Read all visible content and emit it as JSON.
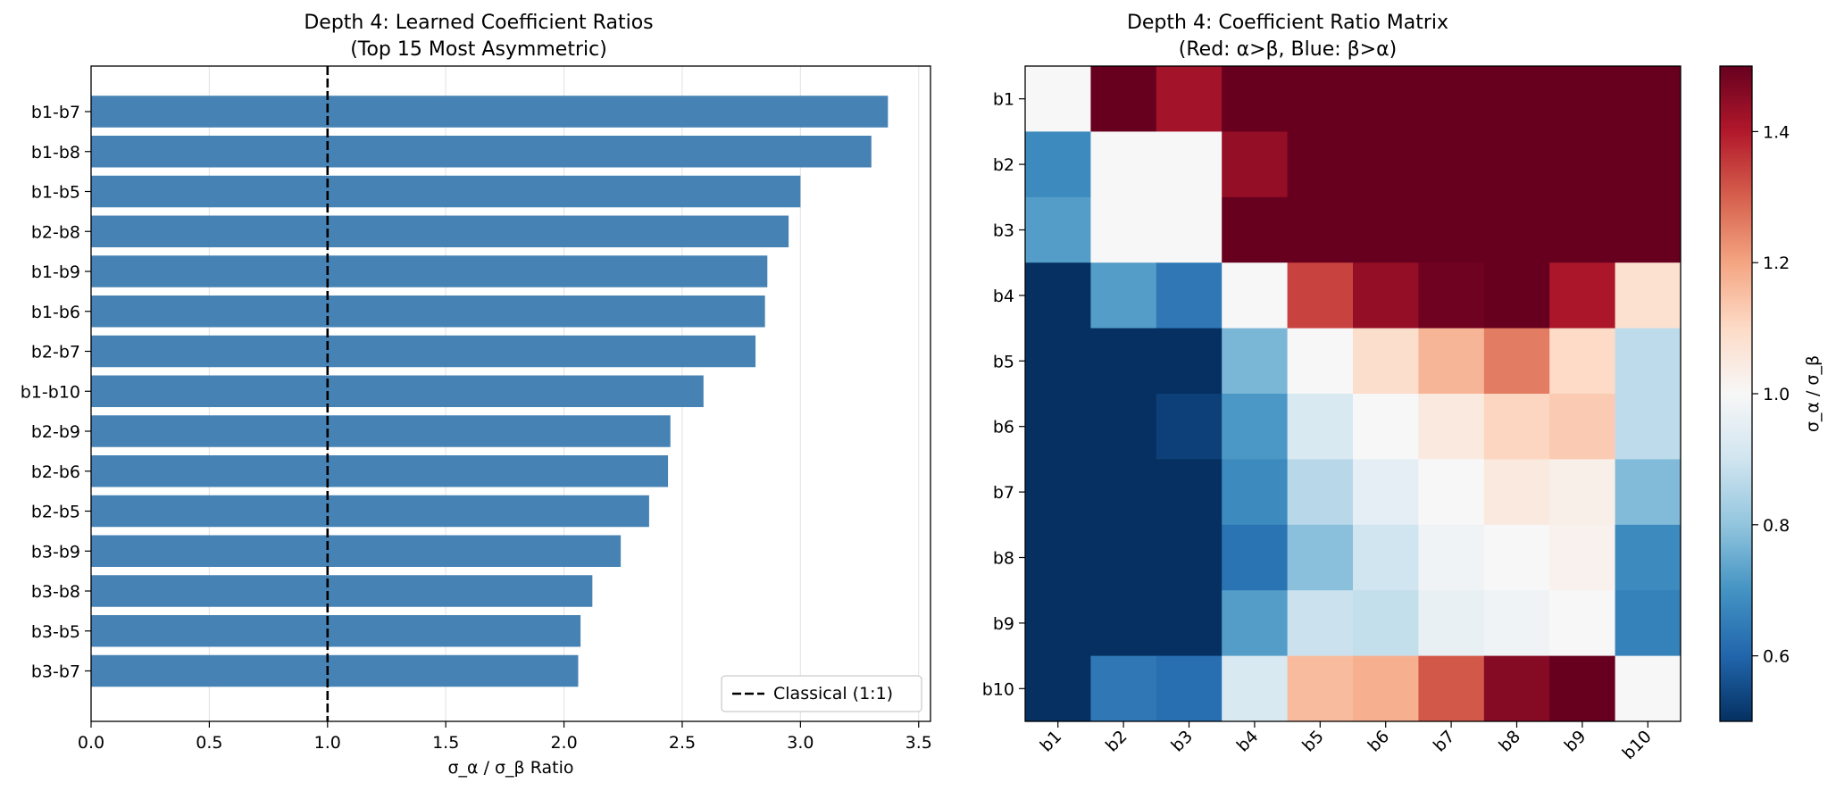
{
  "chart_data": [
    {
      "type": "bar",
      "orientation": "horizontal",
      "title": "Depth 4: Learned Coefficient Ratios",
      "subtitle": "(Top 15 Most Asymmetric)",
      "xlabel": "σ_α / σ_β Ratio",
      "ylabel": "",
      "xlim": [
        0,
        3.55
      ],
      "xticks": [
        "0.0",
        "0.5",
        "1.0",
        "1.5",
        "2.0",
        "2.5",
        "3.0",
        "3.5"
      ],
      "grid": "vertical",
      "categories": [
        "b1-b7",
        "b1-b8",
        "b1-b5",
        "b2-b8",
        "b1-b9",
        "b1-b6",
        "b2-b7",
        "b1-b10",
        "b2-b9",
        "b2-b6",
        "b2-b5",
        "b3-b9",
        "b3-b8",
        "b3-b5",
        "b3-b7"
      ],
      "values": [
        3.37,
        3.3,
        3.0,
        2.95,
        2.86,
        2.85,
        2.81,
        2.59,
        2.45,
        2.44,
        2.36,
        2.24,
        2.12,
        2.07,
        2.06
      ],
      "bar_color": "#4682b4",
      "reference_line": {
        "x": 1.0,
        "style": "dashed",
        "color": "#000000",
        "label": "Classical (1:1)"
      },
      "legend": {
        "position": "lower-right",
        "entries": [
          "Classical (1:1)"
        ]
      }
    },
    {
      "type": "heatmap",
      "title": "Depth 4: Coefficient Ratio Matrix",
      "subtitle": "(Red: α>β, Blue: β>α)",
      "rows": [
        "b1",
        "b2",
        "b3",
        "b4",
        "b5",
        "b6",
        "b7",
        "b8",
        "b9",
        "b10"
      ],
      "cols": [
        "b1",
        "b2",
        "b3",
        "b4",
        "b5",
        "b6",
        "b7",
        "b8",
        "b9",
        "b10"
      ],
      "colormap": "RdBu_r",
      "vmin": 0.5,
      "vmax": 1.5,
      "values": [
        [
          1.0,
          1.5,
          1.42,
          1.5,
          1.5,
          1.5,
          1.5,
          1.5,
          1.5,
          1.5
        ],
        [
          0.68,
          1.0,
          1.0,
          1.44,
          1.5,
          1.5,
          1.5,
          1.5,
          1.5,
          1.5
        ],
        [
          0.72,
          1.0,
          1.0,
          1.5,
          1.5,
          1.5,
          1.5,
          1.5,
          1.5,
          1.5
        ],
        [
          0.5,
          0.72,
          0.64,
          1.0,
          1.34,
          1.44,
          1.49,
          1.5,
          1.41,
          1.08
        ],
        [
          0.5,
          0.5,
          0.5,
          0.77,
          1.0,
          1.09,
          1.17,
          1.26,
          1.1,
          0.87
        ],
        [
          0.5,
          0.5,
          0.53,
          0.71,
          0.92,
          1.0,
          1.05,
          1.11,
          1.13,
          0.87
        ],
        [
          0.5,
          0.5,
          0.5,
          0.68,
          0.86,
          0.95,
          1.0,
          1.05,
          1.03,
          0.78
        ],
        [
          0.5,
          0.5,
          0.5,
          0.63,
          0.79,
          0.9,
          0.98,
          1.0,
          1.02,
          0.68
        ],
        [
          0.5,
          0.5,
          0.5,
          0.72,
          0.89,
          0.88,
          0.96,
          0.98,
          1.0,
          0.66
        ],
        [
          0.5,
          0.64,
          0.62,
          0.92,
          1.16,
          1.18,
          1.31,
          1.46,
          1.5,
          1.0
        ]
      ],
      "colorbar": {
        "label": "σ_α / σ_β",
        "ticks": [
          "0.6",
          "0.8",
          "1.0",
          "1.2",
          "1.4"
        ]
      }
    }
  ]
}
